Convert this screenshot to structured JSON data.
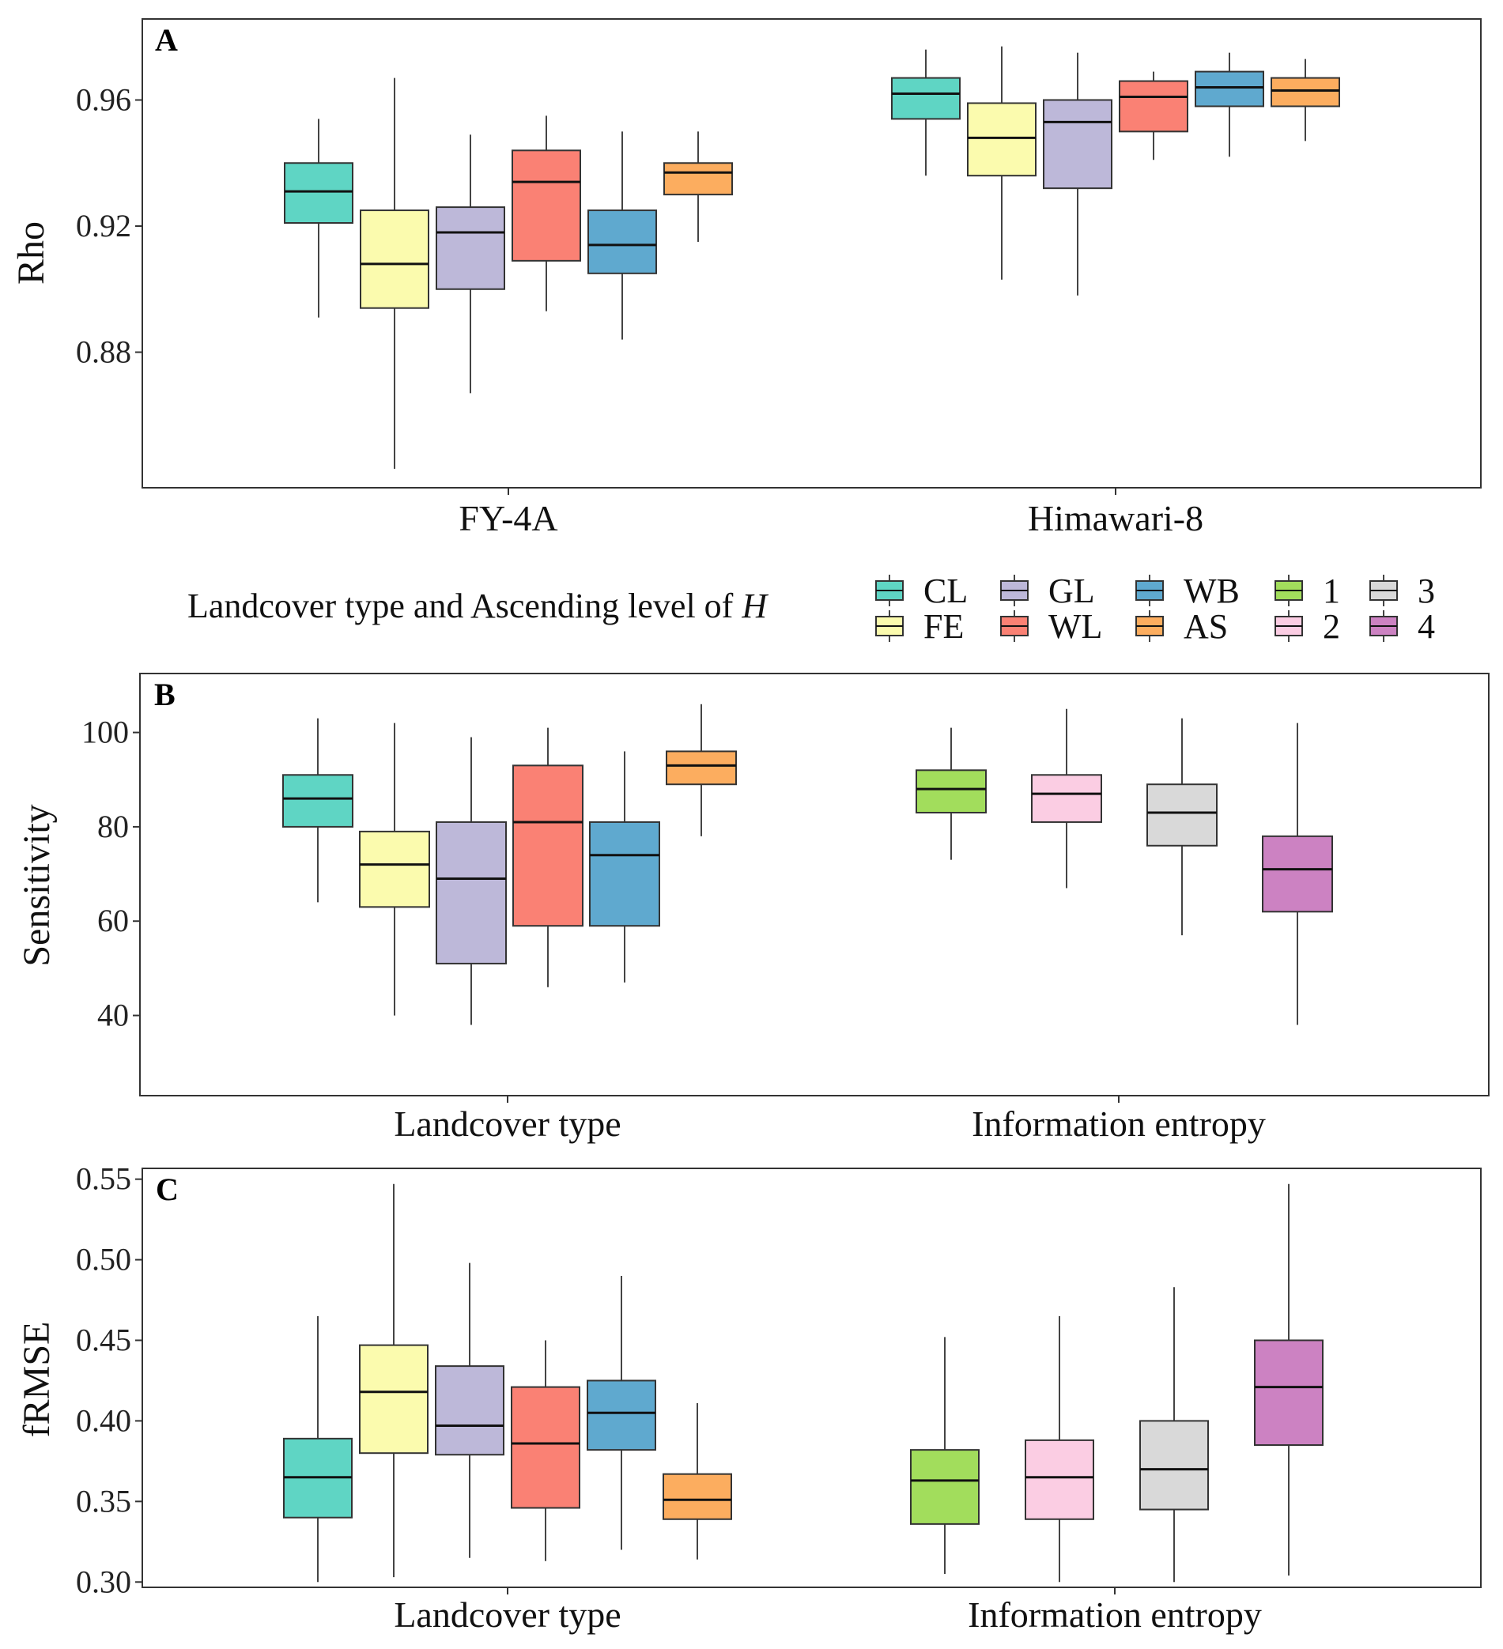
{
  "legend": {
    "title": "Landcover type and Ascending level of",
    "title_symbol": "H",
    "items": [
      {
        "key": "CL",
        "label": "CL",
        "color": "#5fd5c4"
      },
      {
        "key": "FE",
        "label": "FE",
        "color": "#fbfbae"
      },
      {
        "key": "GL",
        "label": "GL",
        "color": "#bdb8d9"
      },
      {
        "key": "WL",
        "label": "WL",
        "color": "#fa8174"
      },
      {
        "key": "WB",
        "label": "WB",
        "color": "#5fa9cf"
      },
      {
        "key": "AS",
        "label": "AS",
        "color": "#fcad5f"
      },
      {
        "key": "1",
        "label": "1",
        "color": "#a2dd5c"
      },
      {
        "key": "2",
        "label": "2",
        "color": "#fbcde3"
      },
      {
        "key": "3",
        "label": "3",
        "color": "#d9d9d9"
      },
      {
        "key": "4",
        "label": "4",
        "color": "#cc82c2"
      }
    ]
  },
  "chart_data": [
    {
      "panel": "A",
      "type": "boxplot",
      "ylabel": "Rho",
      "ylim": [
        0.837,
        0.9857
      ],
      "yticks": [
        0.88,
        0.92,
        0.96
      ],
      "ytick_labels": [
        "0.88",
        "0.92",
        "0.96"
      ],
      "categories": [
        "FY-4A",
        "Himawari-8"
      ],
      "groups": [
        {
          "category": "FY-4A",
          "boxes": [
            {
              "key": "CL",
              "whisker_low": 0.891,
              "q1": 0.921,
              "median": 0.931,
              "q3": 0.94,
              "whisker_high": 0.954
            },
            {
              "key": "FE",
              "whisker_low": 0.843,
              "q1": 0.894,
              "median": 0.908,
              "q3": 0.925,
              "whisker_high": 0.967
            },
            {
              "key": "GL",
              "whisker_low": 0.867,
              "q1": 0.9,
              "median": 0.918,
              "q3": 0.926,
              "whisker_high": 0.949
            },
            {
              "key": "WL",
              "whisker_low": 0.893,
              "q1": 0.909,
              "median": 0.934,
              "q3": 0.944,
              "whisker_high": 0.955
            },
            {
              "key": "WB",
              "whisker_low": 0.884,
              "q1": 0.905,
              "median": 0.914,
              "q3": 0.925,
              "whisker_high": 0.95
            },
            {
              "key": "AS",
              "whisker_low": 0.915,
              "q1": 0.93,
              "median": 0.937,
              "q3": 0.94,
              "whisker_high": 0.95
            }
          ]
        },
        {
          "category": "Himawari-8",
          "boxes": [
            {
              "key": "CL",
              "whisker_low": 0.936,
              "q1": 0.954,
              "median": 0.962,
              "q3": 0.967,
              "whisker_high": 0.976
            },
            {
              "key": "FE",
              "whisker_low": 0.903,
              "q1": 0.936,
              "median": 0.948,
              "q3": 0.959,
              "whisker_high": 0.977
            },
            {
              "key": "GL",
              "whisker_low": 0.898,
              "q1": 0.932,
              "median": 0.953,
              "q3": 0.96,
              "whisker_high": 0.975
            },
            {
              "key": "WL",
              "whisker_low": 0.941,
              "q1": 0.95,
              "median": 0.961,
              "q3": 0.966,
              "whisker_high": 0.969
            },
            {
              "key": "WB",
              "whisker_low": 0.942,
              "q1": 0.958,
              "median": 0.964,
              "q3": 0.969,
              "whisker_high": 0.975
            },
            {
              "key": "AS",
              "whisker_low": 0.947,
              "q1": 0.958,
              "median": 0.963,
              "q3": 0.967,
              "whisker_high": 0.973
            }
          ]
        }
      ]
    },
    {
      "panel": "B",
      "type": "boxplot",
      "ylabel": "Sensitivity",
      "ylim": [
        23,
        112.5
      ],
      "yticks": [
        40,
        60,
        80,
        100
      ],
      "ytick_labels": [
        "40",
        "60",
        "80",
        "100"
      ],
      "categories": [
        "Landcover type",
        "Information entropy"
      ],
      "groups": [
        {
          "category": "Landcover type",
          "boxes": [
            {
              "key": "CL",
              "whisker_low": 64,
              "q1": 80,
              "median": 86,
              "q3": 91,
              "whisker_high": 103
            },
            {
              "key": "FE",
              "whisker_low": 40,
              "q1": 63,
              "median": 72,
              "q3": 79,
              "whisker_high": 102
            },
            {
              "key": "GL",
              "whisker_low": 38,
              "q1": 51,
              "median": 69,
              "q3": 81,
              "whisker_high": 99
            },
            {
              "key": "WL",
              "whisker_low": 46,
              "q1": 59,
              "median": 81,
              "q3": 93,
              "whisker_high": 101
            },
            {
              "key": "WB",
              "whisker_low": 47,
              "q1": 59,
              "median": 74,
              "q3": 81,
              "whisker_high": 96
            },
            {
              "key": "AS",
              "whisker_low": 78,
              "q1": 89,
              "median": 93,
              "q3": 96,
              "whisker_high": 106
            }
          ]
        },
        {
          "category": "Information entropy",
          "boxes": [
            {
              "key": "1",
              "whisker_low": 73,
              "q1": 83,
              "median": 88,
              "q3": 92,
              "whisker_high": 101
            },
            {
              "key": "2",
              "whisker_low": 67,
              "q1": 81,
              "median": 87,
              "q3": 91,
              "whisker_high": 105
            },
            {
              "key": "3",
              "whisker_low": 57,
              "q1": 76,
              "median": 83,
              "q3": 89,
              "whisker_high": 103
            },
            {
              "key": "4",
              "whisker_low": 38,
              "q1": 62,
              "median": 71,
              "q3": 78,
              "whisker_high": 102
            }
          ]
        }
      ]
    },
    {
      "panel": "C",
      "type": "boxplot",
      "ylabel": "fRMSE",
      "ylim": [
        0.2967,
        0.5567
      ],
      "yticks": [
        0.3,
        0.35,
        0.4,
        0.45,
        0.5,
        0.55
      ],
      "ytick_labels": [
        "0.30",
        "0.35",
        "0.40",
        "0.45",
        "0.50",
        "0.55"
      ],
      "categories": [
        "Landcover type",
        "Information entropy"
      ],
      "groups": [
        {
          "category": "Landcover type",
          "boxes": [
            {
              "key": "CL",
              "whisker_low": 0.3,
              "q1": 0.34,
              "median": 0.365,
              "q3": 0.389,
              "whisker_high": 0.465
            },
            {
              "key": "FE",
              "whisker_low": 0.303,
              "q1": 0.38,
              "median": 0.418,
              "q3": 0.447,
              "whisker_high": 0.547
            },
            {
              "key": "GL",
              "whisker_low": 0.315,
              "q1": 0.379,
              "median": 0.397,
              "q3": 0.434,
              "whisker_high": 0.498
            },
            {
              "key": "WL",
              "whisker_low": 0.313,
              "q1": 0.346,
              "median": 0.386,
              "q3": 0.421,
              "whisker_high": 0.45
            },
            {
              "key": "WB",
              "whisker_low": 0.32,
              "q1": 0.382,
              "median": 0.405,
              "q3": 0.425,
              "whisker_high": 0.49
            },
            {
              "key": "AS",
              "whisker_low": 0.314,
              "q1": 0.339,
              "median": 0.351,
              "q3": 0.367,
              "whisker_high": 0.411
            }
          ]
        },
        {
          "category": "Information entropy",
          "boxes": [
            {
              "key": "1",
              "whisker_low": 0.305,
              "q1": 0.336,
              "median": 0.363,
              "q3": 0.382,
              "whisker_high": 0.452
            },
            {
              "key": "2",
              "whisker_low": 0.3,
              "q1": 0.339,
              "median": 0.365,
              "q3": 0.388,
              "whisker_high": 0.465
            },
            {
              "key": "3",
              "whisker_low": 0.3,
              "q1": 0.345,
              "median": 0.37,
              "q3": 0.4,
              "whisker_high": 0.483
            },
            {
              "key": "4",
              "whisker_low": 0.304,
              "q1": 0.385,
              "median": 0.421,
              "q3": 0.45,
              "whisker_high": 0.547
            }
          ]
        }
      ]
    }
  ]
}
